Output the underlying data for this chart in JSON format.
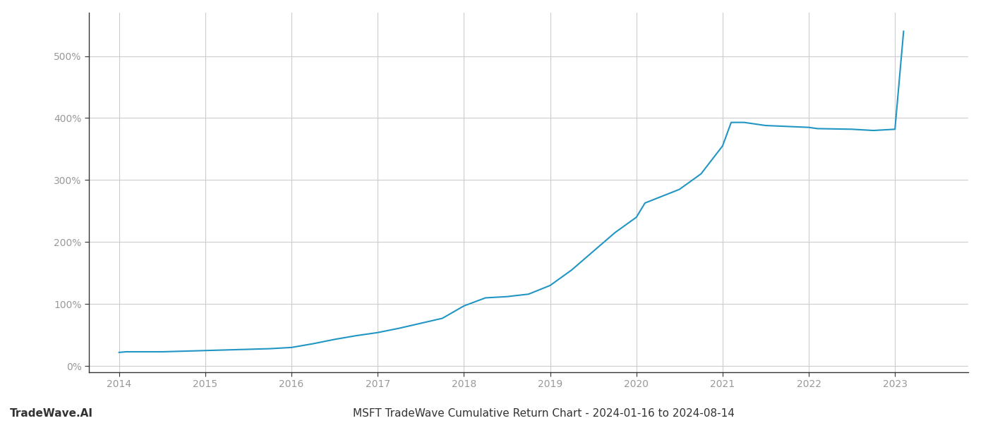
{
  "title": "MSFT TradeWave Cumulative Return Chart - 2024-01-16 to 2024-08-14",
  "watermark": "TradeWave.AI",
  "line_color": "#2196c4",
  "line_width": 1.5,
  "background_color": "#ffffff",
  "grid_color": "#cccccc",
  "x_years": [
    2014,
    2015,
    2016,
    2017,
    2018,
    2019,
    2020,
    2021,
    2022,
    2023
  ],
  "x_values": [
    2014.0,
    2014.08,
    2014.25,
    2014.5,
    2014.75,
    2015.0,
    2015.25,
    2015.5,
    2015.75,
    2016.0,
    2016.25,
    2016.5,
    2016.75,
    2017.0,
    2017.25,
    2017.5,
    2017.75,
    2018.0,
    2018.25,
    2018.5,
    2018.75,
    2019.0,
    2019.25,
    2019.5,
    2019.75,
    2020.0,
    2020.1,
    2020.5,
    2020.75,
    2021.0,
    2021.1,
    2021.25,
    2021.5,
    2022.0,
    2022.1,
    2022.5,
    2022.75,
    2023.0,
    2023.1
  ],
  "y_values": [
    22,
    23,
    23,
    23,
    24,
    25,
    26,
    27,
    28,
    30,
    36,
    43,
    49,
    54,
    61,
    69,
    77,
    97,
    110,
    112,
    116,
    130,
    155,
    185,
    215,
    240,
    263,
    285,
    310,
    355,
    393,
    393,
    388,
    385,
    383,
    382,
    380,
    382,
    540
  ],
  "ylim": [
    -10,
    570
  ],
  "yticks": [
    0,
    100,
    200,
    300,
    400,
    500
  ],
  "xlim": [
    2013.65,
    2023.85
  ],
  "title_fontsize": 11,
  "watermark_fontsize": 11,
  "tick_fontsize": 10,
  "tick_color": "#999999",
  "spine_color": "#333333",
  "label_color": "#999999"
}
